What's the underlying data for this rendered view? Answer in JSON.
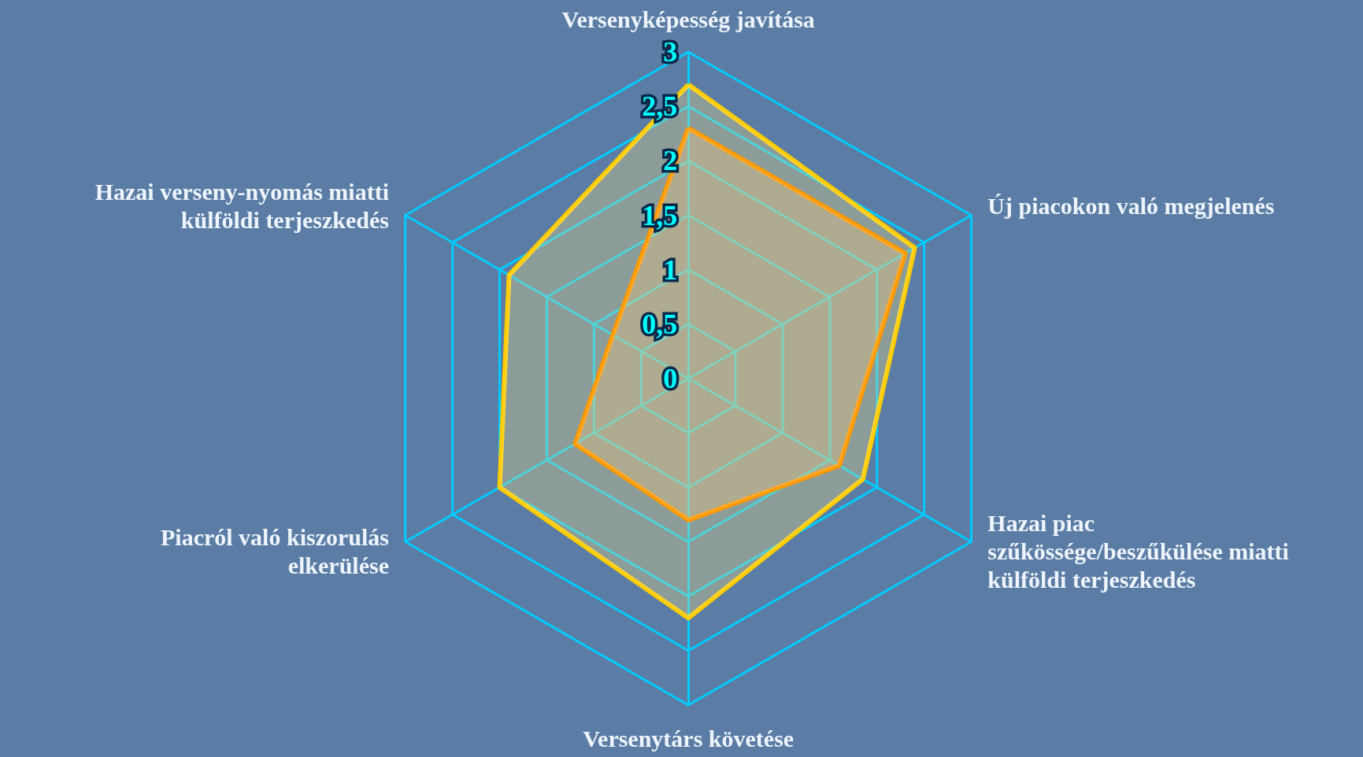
{
  "chart_data": {
    "type": "radar",
    "categories": [
      "Versenyképesség javítása",
      "Új piacokon való megjelenés",
      "Hazai piac szűkössége/beszűkülése miatti külföldi terjeszkedés",
      "Versenytárs követése",
      "Piacról való kiszorulás elkerülése",
      "Hazai verseny-nyomás miatti külföldi terjeszkedés"
    ],
    "series": [
      {
        "color": "#ffcc00",
        "values": [
          2.7,
          2.4,
          1.85,
          2.2,
          2.0,
          1.9
        ]
      },
      {
        "color": "#ff9900",
        "values": [
          2.3,
          2.3,
          1.6,
          1.3,
          1.2,
          0.8
        ]
      }
    ],
    "ylim": [
      0,
      3
    ],
    "yticks": [
      {
        "value": 0,
        "label": "0"
      },
      {
        "value": 0.5,
        "label": "0,5"
      },
      {
        "value": 1,
        "label": "1"
      },
      {
        "value": 1.5,
        "label": "1,5"
      },
      {
        "value": 2,
        "label": "2"
      },
      {
        "value": 2.5,
        "label": "2,5"
      },
      {
        "value": 3,
        "label": "3"
      }
    ],
    "grid": true
  }
}
